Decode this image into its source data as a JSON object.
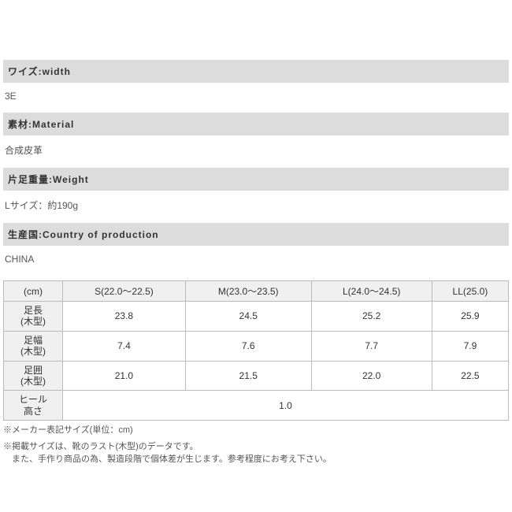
{
  "sections": [
    {
      "header": "ワイズ:width",
      "value": "3E"
    },
    {
      "header": "素材:Material",
      "value": "合成皮革"
    },
    {
      "header": "片足重量:Weight",
      "value": "Lサイズ：約190g"
    },
    {
      "header": "生産国:Country of production",
      "value": "CHINA"
    }
  ],
  "sizeTable": {
    "colHeaders": [
      "(cm)",
      "S(22.0～22.5)",
      "M(23.0～23.5)",
      "L(24.0～24.5)",
      "LL(25.0)"
    ],
    "rows": [
      {
        "label": "足長\n(木型)",
        "cells": [
          "23.8",
          "24.5",
          "25.2",
          "25.9"
        ]
      },
      {
        "label": "足幅\n(木型)",
        "cells": [
          "7.4",
          "7.6",
          "7.7",
          "7.9"
        ]
      },
      {
        "label": "足囲\n(木型)",
        "cells": [
          "21.0",
          "21.5",
          "22.0",
          "22.5"
        ]
      }
    ],
    "spanRow": {
      "label": "ヒール\n高さ",
      "value": "1.0"
    }
  },
  "footnotes": {
    "line1": "※メーカー表記サイズ(単位：cm)",
    "line2": "※掲載サイズは、靴のラスト(木型)のデータです。\n　また、手作り商品の為、製造段階で個体差が生じます。参考程度にお考え下さい。"
  },
  "style": {
    "headerBg": "#dcdcdc",
    "cellHeaderBg": "#f0f0f0",
    "borderColor": "#bbbbbb",
    "textColor": "#333333"
  }
}
